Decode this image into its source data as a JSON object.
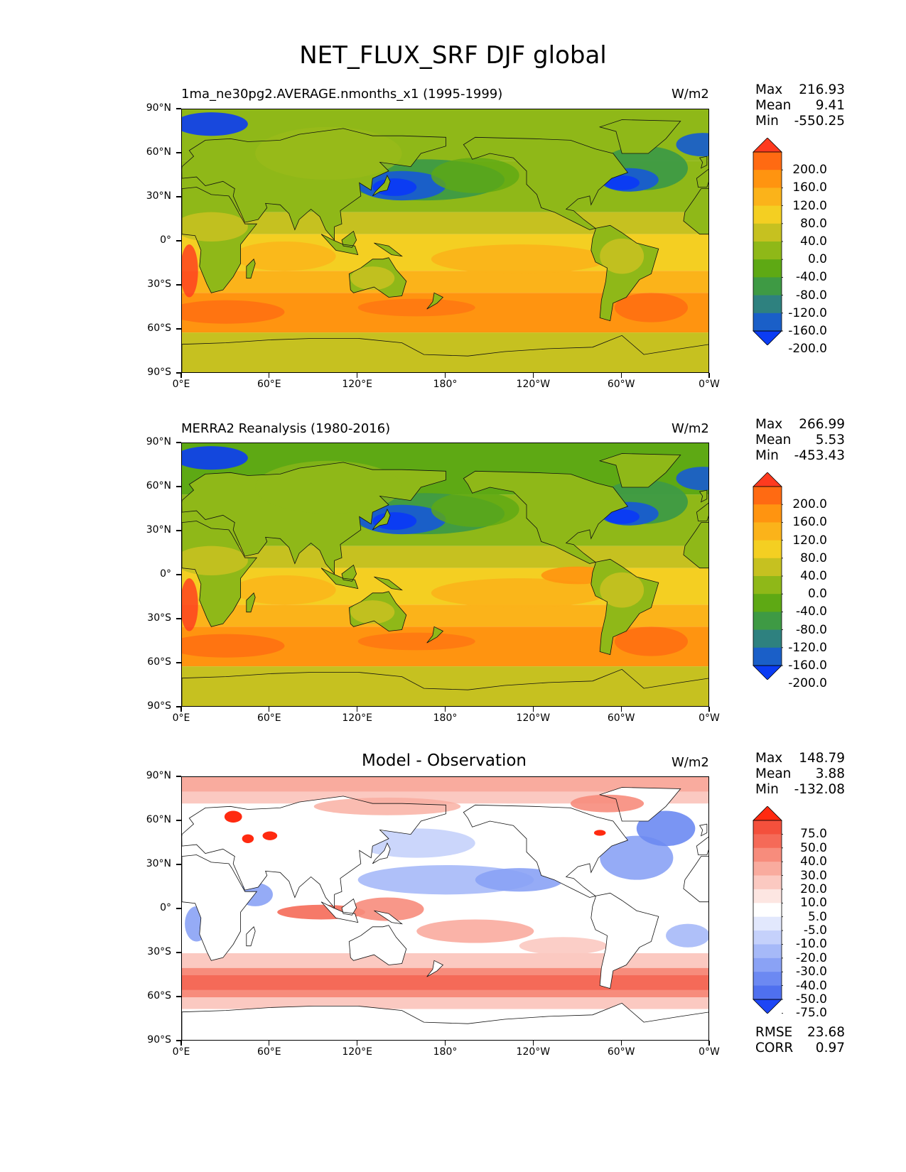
{
  "title": "NET_FLUX_SRF DJF global",
  "axes": {
    "lat_labels": [
      "90°N",
      "60°N",
      "30°N",
      "0°",
      "30°S",
      "60°S",
      "90°S"
    ],
    "lon_labels": [
      "0°E",
      "60°E",
      "120°E",
      "180°",
      "120°W",
      "60°W",
      "0°W"
    ]
  },
  "panels": [
    {
      "title_left": "1ma_ne30pg2.AVERAGE.nmonths_x1 (1995-1999)",
      "units": "W/m2",
      "stats": [
        {
          "label": "Max",
          "value": "216.93"
        },
        {
          "label": "Mean",
          "value": "9.41"
        },
        {
          "label": "Min",
          "value": "-550.25"
        }
      ]
    },
    {
      "title_left": "MERRA2 Reanalysis (1980-2016)",
      "units": "W/m2",
      "stats": [
        {
          "label": "Max",
          "value": "266.99"
        },
        {
          "label": "Mean",
          "value": "5.53"
        },
        {
          "label": "Min",
          "value": "-453.43"
        }
      ]
    },
    {
      "title_center": "Model - Observation",
      "units": "W/m2",
      "stats": [
        {
          "label": "Max",
          "value": "148.79"
        },
        {
          "label": "Mean",
          "value": "3.88"
        },
        {
          "label": "Min",
          "value": "-132.08"
        }
      ],
      "errors": [
        {
          "label": "RMSE",
          "value": "23.68"
        },
        {
          "label": "CORR",
          "value": "0.97"
        }
      ]
    }
  ],
  "colorbar_main": {
    "labels": [
      "200.0",
      "160.0",
      "120.0",
      "80.0",
      "40.0",
      "0.0",
      "-40.0",
      "-80.0",
      "-120.0",
      "-160.0",
      "-200.0"
    ],
    "colors": [
      "#ff3a1f",
      "#ff6a12",
      "#ff9410",
      "#fbb31a",
      "#f4cf22",
      "#c6c120",
      "#8fb818",
      "#5ea914",
      "#3e9a44",
      "#2e817f",
      "#1a5fc8",
      "#0b3cf3"
    ]
  },
  "colorbar_diff": {
    "labels": [
      "75.0",
      "50.0",
      "40.0",
      "30.0",
      "20.0",
      "10.0",
      "5.0",
      "-5.0",
      "-10.0",
      "-20.0",
      "-30.0",
      "-40.0",
      "-50.0",
      "-75.0"
    ],
    "colors": [
      "#ff2a10",
      "#f4503c",
      "#f56a58",
      "#f78c7c",
      "#f9ab9e",
      "#fbc9c1",
      "#fde6e2",
      "#ffffff",
      "#e2e8fd",
      "#c5d1fb",
      "#a6b9f8",
      "#8aa2f5",
      "#6c89f2",
      "#4f70ef",
      "#1d46f5"
    ]
  },
  "map_data": {
    "projection": "PlateCarree, central longitude 180",
    "extent_lon": [
      0,
      360
    ],
    "extent_lat": [
      -90,
      90
    ],
    "field": "NET_FLUX_SRF",
    "season": "DJF"
  }
}
